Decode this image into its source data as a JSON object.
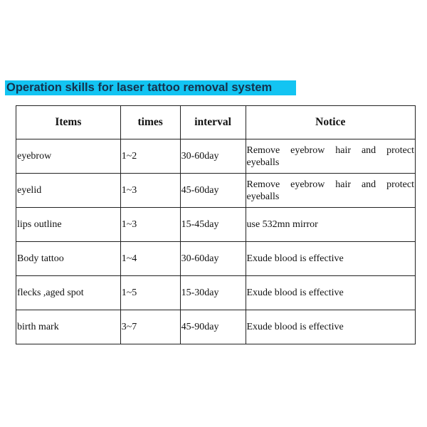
{
  "title": "Operation skills for laser tattoo removal system",
  "colors": {
    "title_highlight": "#13c4f2",
    "title_text": "#15324d"
  },
  "table": {
    "headers": [
      "Items",
      "times",
      "interval",
      "Notice"
    ],
    "rows": [
      [
        "eyebrow",
        "1~2",
        "30-60day",
        "Remove eyebrow hair and protect eyeballs"
      ],
      [
        "eyelid",
        "1~3",
        "45-60day",
        "Remove eyebrow hair and protect eyeballs"
      ],
      [
        "lips outline",
        "1~3",
        "15-45day",
        "use 532mn mirror"
      ],
      [
        "Body tattoo",
        "1~4",
        "30-60day",
        "Exude blood is effective"
      ],
      [
        "flecks ,aged spot",
        "1~5",
        "15-30day",
        "Exude blood is effective"
      ],
      [
        "birth mark",
        "3~7",
        "45-90day",
        "Exude blood is effective"
      ]
    ]
  }
}
